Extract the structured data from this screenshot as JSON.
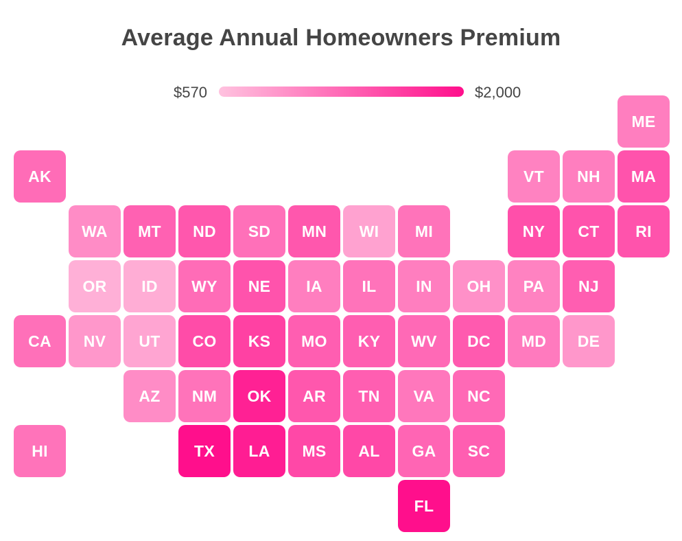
{
  "title": "Average Annual Homeowners Premium",
  "legend": {
    "min_label": "$570",
    "max_label": "$2,000",
    "min_value": 570,
    "max_value": 2000,
    "color_low": "#ffc2df",
    "color_high": "#ff0f8c"
  },
  "states": [
    {
      "abbr": "ME",
      "intensity": 0.38
    },
    {
      "abbr": "AK",
      "intensity": 0.48
    },
    {
      "abbr": "VT",
      "intensity": 0.36
    },
    {
      "abbr": "NH",
      "intensity": 0.38
    },
    {
      "abbr": "MA",
      "intensity": 0.62
    },
    {
      "abbr": "WA",
      "intensity": 0.3
    },
    {
      "abbr": "MT",
      "intensity": 0.54
    },
    {
      "abbr": "ND",
      "intensity": 0.6
    },
    {
      "abbr": "SD",
      "intensity": 0.46
    },
    {
      "abbr": "MN",
      "intensity": 0.6
    },
    {
      "abbr": "WI",
      "intensity": 0.18
    },
    {
      "abbr": "MI",
      "intensity": 0.44
    },
    {
      "abbr": "NY",
      "intensity": 0.64
    },
    {
      "abbr": "CT",
      "intensity": 0.62
    },
    {
      "abbr": "RI",
      "intensity": 0.62
    },
    {
      "abbr": "OR",
      "intensity": 0.1
    },
    {
      "abbr": "ID",
      "intensity": 0.12
    },
    {
      "abbr": "WY",
      "intensity": 0.48
    },
    {
      "abbr": "NE",
      "intensity": 0.62
    },
    {
      "abbr": "IA",
      "intensity": 0.38
    },
    {
      "abbr": "IL",
      "intensity": 0.44
    },
    {
      "abbr": "IN",
      "intensity": 0.38
    },
    {
      "abbr": "OH",
      "intensity": 0.28
    },
    {
      "abbr": "PA",
      "intensity": 0.36
    },
    {
      "abbr": "NJ",
      "intensity": 0.56
    },
    {
      "abbr": "CA",
      "intensity": 0.46
    },
    {
      "abbr": "NV",
      "intensity": 0.24
    },
    {
      "abbr": "UT",
      "intensity": 0.16
    },
    {
      "abbr": "CO",
      "intensity": 0.66
    },
    {
      "abbr": "KS",
      "intensity": 0.72
    },
    {
      "abbr": "MO",
      "intensity": 0.56
    },
    {
      "abbr": "KY",
      "intensity": 0.56
    },
    {
      "abbr": "WV",
      "intensity": 0.5
    },
    {
      "abbr": "DC",
      "intensity": 0.58
    },
    {
      "abbr": "MD",
      "intensity": 0.4
    },
    {
      "abbr": "DE",
      "intensity": 0.24
    },
    {
      "abbr": "AZ",
      "intensity": 0.3
    },
    {
      "abbr": "NM",
      "intensity": 0.44
    },
    {
      "abbr": "OK",
      "intensity": 0.9
    },
    {
      "abbr": "AR",
      "intensity": 0.6
    },
    {
      "abbr": "TN",
      "intensity": 0.56
    },
    {
      "abbr": "VA",
      "intensity": 0.42
    },
    {
      "abbr": "NC",
      "intensity": 0.5
    },
    {
      "abbr": "HI",
      "intensity": 0.44
    },
    {
      "abbr": "TX",
      "intensity": 1.0
    },
    {
      "abbr": "LA",
      "intensity": 0.92
    },
    {
      "abbr": "MS",
      "intensity": 0.68
    },
    {
      "abbr": "AL",
      "intensity": 0.68
    },
    {
      "abbr": "GA",
      "intensity": 0.52
    },
    {
      "abbr": "SC",
      "intensity": 0.56
    },
    {
      "abbr": "FL",
      "intensity": 1.0
    }
  ]
}
